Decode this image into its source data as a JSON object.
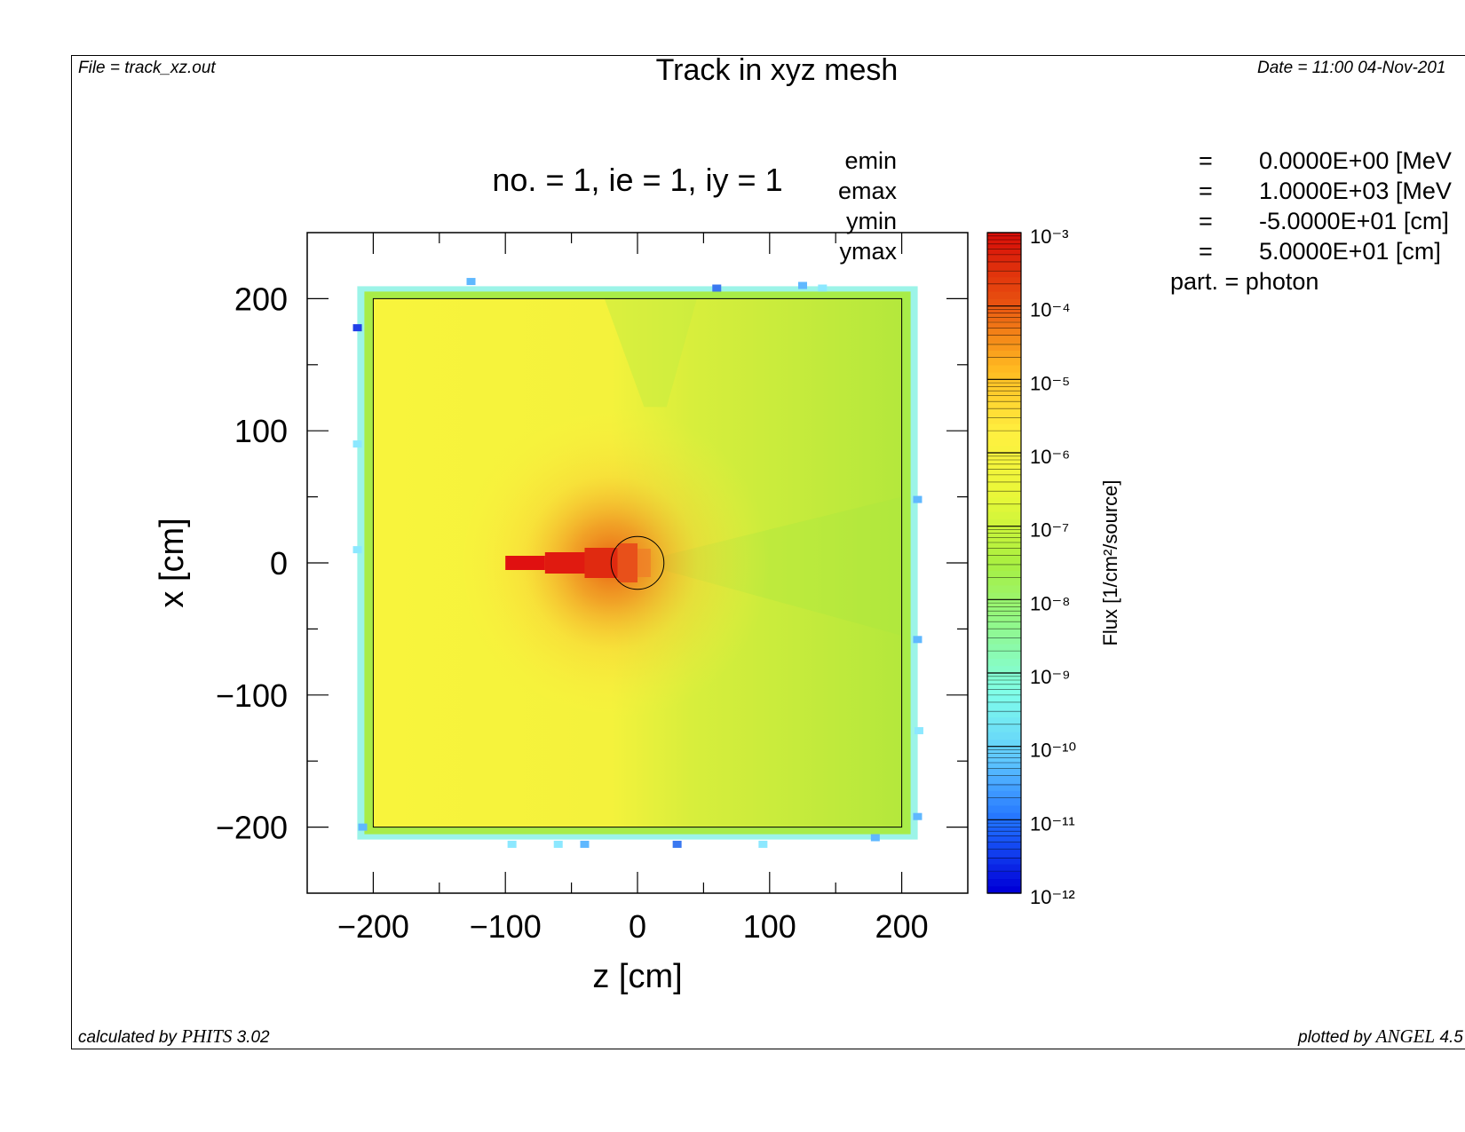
{
  "header": {
    "file": "File = track_xz.out",
    "title": "Track in xyz mesh",
    "date": "Date = 11:00 04-Nov-201"
  },
  "footer": {
    "calculated_prefix": "calculated by ",
    "calculated_code": "PHITS",
    "calculated_version": " 3.02",
    "plotted_prefix": "plotted by ",
    "plotted_code": "ANGEL",
    "plotted_version": " 4.5"
  },
  "parameters": [
    {
      "key": "emin",
      "eq": "=",
      "value": "0.0000E+00 [MeV"
    },
    {
      "key": "emax",
      "eq": "=",
      "value": "1.0000E+03 [MeV"
    },
    {
      "key": "ymin",
      "eq": "=",
      "value": "-5.0000E+01 [cm]"
    },
    {
      "key": "ymax",
      "eq": "=",
      "value": "5.0000E+01 [cm]"
    }
  ],
  "particle": "part. = photon",
  "chart_data": {
    "type": "heatmap",
    "title": "no. =  1,  ie =  1,  iy =  1",
    "xlabel": "z [cm]",
    "ylabel": "x [cm]",
    "xlim": [
      -250,
      250
    ],
    "ylim": [
      -250,
      250
    ],
    "xticks": [
      -200,
      -100,
      0,
      100,
      200
    ],
    "yticks": [
      -200,
      -100,
      0,
      100,
      200
    ],
    "xtick_labels": [
      "−200",
      "−100",
      "0",
      "100",
      "200"
    ],
    "ytick_labels": [
      "−200",
      "−100",
      "0",
      "100",
      "200"
    ],
    "colorbar": {
      "label": "Flux [1/cm²/source]",
      "scale": "log",
      "range": [
        1e-12,
        0.001
      ],
      "tick_labels": [
        "10⁻³",
        "10⁻⁴",
        "10⁻⁵",
        "10⁻⁶",
        "10⁻⁷",
        "10⁻⁸",
        "10⁻⁹",
        "10⁻¹⁰",
        "10⁻¹¹",
        "10⁻¹²"
      ],
      "colors": [
        "#0000d8",
        "#1e6cff",
        "#5fc8ff",
        "#80ffea",
        "#90f890",
        "#a8f040",
        "#e8f838",
        "#fff040",
        "#ffb820",
        "#e85010",
        "#d81008"
      ]
    },
    "geometry": {
      "box": {
        "zmin": -200,
        "zmax": 200,
        "xmin": -200,
        "xmax": 200
      },
      "sphere": {
        "z": 0,
        "x": 0,
        "r": 20
      }
    },
    "field": {
      "background_level": 1e-06,
      "beam": {
        "z_start": -100,
        "z_end": 0,
        "x": 0,
        "level": 0.0005
      },
      "hotspot": {
        "z": -20,
        "x": 0,
        "radius": 120,
        "peak_level": 0.0001
      }
    }
  }
}
